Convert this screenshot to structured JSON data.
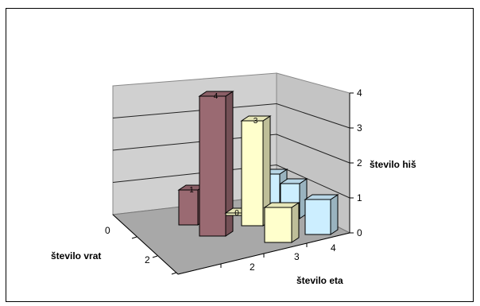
{
  "chart_data": {
    "type": "bar",
    "title": "",
    "z_label": "število hiš",
    "x_label": "število eta",
    "y_label": "število vrat",
    "z_ticks": [
      "0",
      "1",
      "2",
      "3",
      "4"
    ],
    "zlim": [
      0,
      4
    ],
    "x_ticks": [
      "2",
      "3",
      "4"
    ],
    "y_ticks": [
      "0",
      "2"
    ],
    "bars": [
      {
        "label": "1",
        "value": 1,
        "color": "#9a6a72"
      },
      {
        "label": "4",
        "value": 4,
        "color": "#9a6a72"
      },
      {
        "label": "0",
        "value": 0,
        "color": "#ffffcc"
      },
      {
        "label": "3",
        "value": 3,
        "color": "#ffffcc"
      },
      {
        "label": "",
        "value": 1,
        "color": "#cceeff"
      },
      {
        "label": "",
        "value": 1,
        "color": "#cceeff"
      },
      {
        "label": "",
        "value": 1,
        "color": "#cceeff"
      },
      {
        "label": "",
        "value": 1,
        "color": "#ffffcc"
      }
    ],
    "grid": true,
    "legend": "none"
  }
}
